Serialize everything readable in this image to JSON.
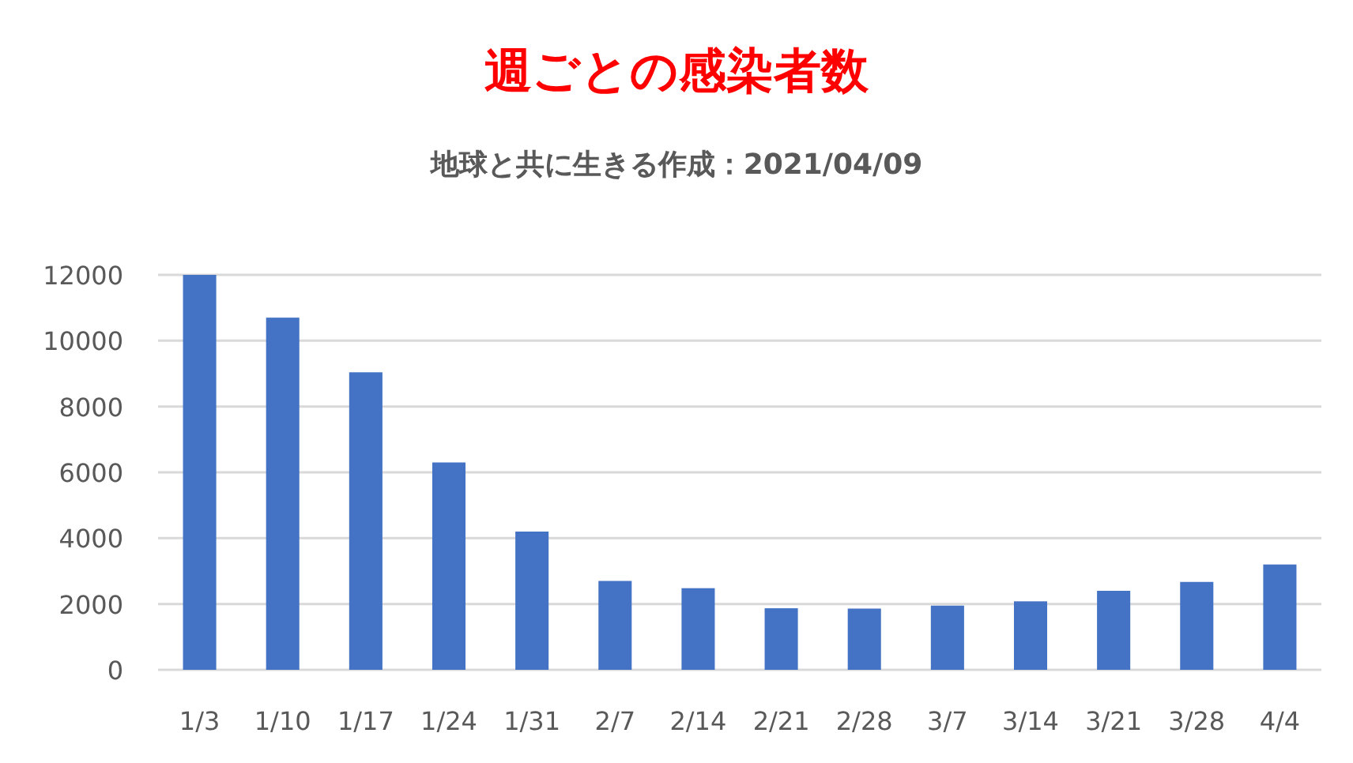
{
  "chart_data": {
    "type": "bar",
    "title": "週ごとの感染者数",
    "subtitle": "地球と共に生きる作成：2021/04/09",
    "categories": [
      "1/3",
      "1/10",
      "1/17",
      "1/24",
      "1/31",
      "2/7",
      "2/14",
      "2/21",
      "2/28",
      "3/7",
      "3/14",
      "3/21",
      "3/28",
      "4/4"
    ],
    "values": [
      12000,
      10700,
      9040,
      6300,
      4200,
      2700,
      2480,
      1870,
      1860,
      1950,
      2080,
      2400,
      2670,
      3200
    ],
    "color": "#4472c4",
    "ylim": [
      0,
      12000
    ],
    "yticks": [
      0,
      2000,
      4000,
      6000,
      8000,
      10000,
      12000
    ],
    "grid": "y"
  }
}
